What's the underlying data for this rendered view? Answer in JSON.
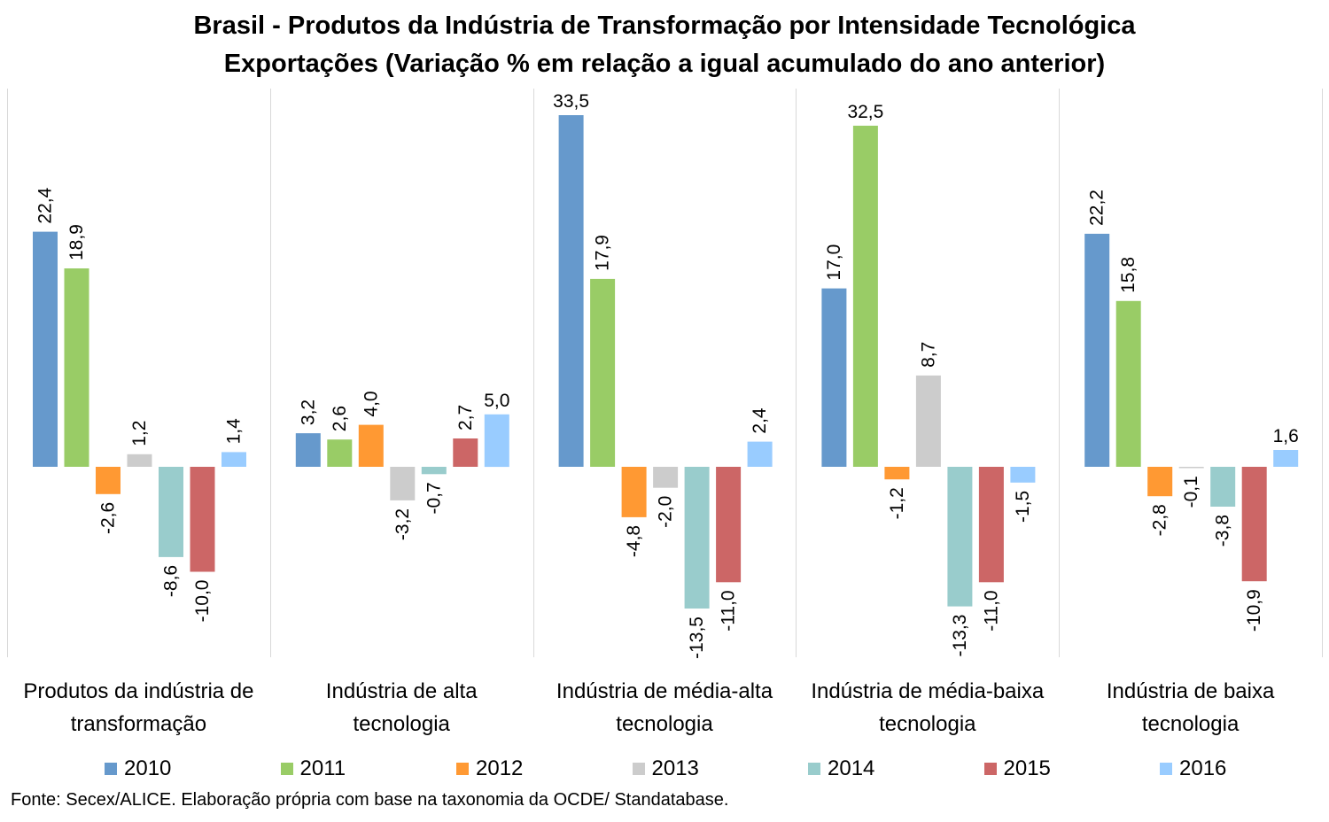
{
  "title": {
    "line1": "Brasil - Produtos da Indústria de Transformação por Intensidade Tecnológica",
    "line2": "Exportações (Variação % em relação a igual acumulado do ano anterior)"
  },
  "source": "Fonte: Secex/ALICE. Elaboração própria com base na taxonomia da OCDE/ Standatabase.",
  "chart_data": {
    "type": "bar",
    "categories": [
      [
        "Produtos da indústria de",
        "transformação"
      ],
      [
        "Indústria de alta",
        "tecnologia"
      ],
      [
        "Indústria de média-alta",
        "tecnologia"
      ],
      [
        "Indústria de média-baixa",
        "tecnologia"
      ],
      [
        "Indústria de baixa",
        "tecnologia"
      ]
    ],
    "series": [
      {
        "name": "2010",
        "color": "#6699cc",
        "values": [
          22.4,
          3.2,
          33.5,
          17.0,
          22.2
        ],
        "labels": [
          "22,4",
          "3,2",
          "33,5",
          "17,0",
          "22,2"
        ]
      },
      {
        "name": "2011",
        "color": "#99cc66",
        "values": [
          18.9,
          2.6,
          17.9,
          32.5,
          15.8
        ],
        "labels": [
          "18,9",
          "2,6",
          "17,9",
          "32,5",
          "15,8"
        ]
      },
      {
        "name": "2012",
        "color": "#ff9933",
        "values": [
          -2.6,
          4.0,
          -4.8,
          -1.2,
          -2.8
        ],
        "labels": [
          "-2,6",
          "4,0",
          "-4,8",
          "-1,2",
          "-2,8"
        ]
      },
      {
        "name": "2013",
        "color": "#cccccc",
        "values": [
          1.2,
          -3.2,
          -2.0,
          8.7,
          -0.1
        ],
        "labels": [
          "1,2",
          "-3,2",
          "-2,0",
          "8,7",
          "-0,1"
        ]
      },
      {
        "name": "2014",
        "color": "#99cccc",
        "values": [
          -8.6,
          -0.7,
          -13.5,
          -13.3,
          -3.8
        ],
        "labels": [
          "-8,6",
          "-0,7",
          "-13,5",
          "-13,3",
          "-3,8"
        ]
      },
      {
        "name": "2015",
        "color": "#cc6666",
        "values": [
          -10.0,
          2.7,
          -11.0,
          -11.0,
          -10.9
        ],
        "labels": [
          "-10,0",
          "2,7",
          "-11,0",
          "-11,0",
          "-10,9"
        ]
      },
      {
        "name": "2016",
        "color": "#99ccff",
        "values": [
          1.4,
          5.0,
          2.4,
          -1.5,
          1.6
        ],
        "labels": [
          "1,4",
          "5,0",
          "2,4",
          "-1,5",
          "1,6"
        ]
      }
    ],
    "horizontal_labels": [
      "33,5",
      "32,5",
      "5,0",
      "1,6"
    ],
    "ylim": [
      -18.0,
      36.0
    ],
    "grid": false,
    "legend": "bottom",
    "xlabel": "",
    "ylabel": ""
  }
}
